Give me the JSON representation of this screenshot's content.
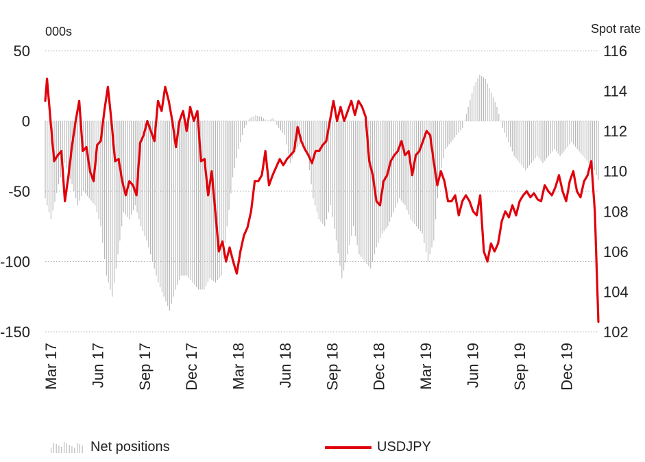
{
  "chart_data": {
    "type": "bar+line",
    "units_left": "000s",
    "units_right": "Spot rate",
    "y_left_ticks": [
      "50",
      "0",
      "-50",
      "-100",
      "-150"
    ],
    "y_right_ticks": [
      "116",
      "114",
      "112",
      "110",
      "108",
      "106",
      "104",
      "102"
    ],
    "ylim_left": [
      -150,
      50
    ],
    "ylim_right": [
      102,
      116
    ],
    "x_tick_labels": [
      "Mar 17",
      "Jun 17",
      "Sep 17",
      "Dec 17",
      "Mar 18",
      "Jun 18",
      "Sep 18",
      "Dec 18",
      "Mar 19",
      "Jun 19",
      "Sep 19",
      "Dec 19"
    ],
    "grid": "horizontal dotted",
    "legend_position": "bottom",
    "series": [
      {
        "name": "Net positions",
        "kind": "bar",
        "axis": "left",
        "color": "#b5b5b5",
        "anchors": [
          [
            0,
            -55
          ],
          [
            3,
            -70
          ],
          [
            7,
            -45
          ],
          [
            10,
            -30
          ],
          [
            14,
            -45
          ],
          [
            17,
            -60
          ],
          [
            20,
            -50
          ],
          [
            23,
            -55
          ],
          [
            26,
            -60
          ],
          [
            29,
            -75
          ],
          [
            32,
            -110
          ],
          [
            35,
            -125
          ],
          [
            38,
            -95
          ],
          [
            41,
            -65
          ],
          [
            44,
            -70
          ],
          [
            47,
            -60
          ],
          [
            50,
            -75
          ],
          [
            53,
            -85
          ],
          [
            56,
            -100
          ],
          [
            59,
            -115
          ],
          [
            62,
            -125
          ],
          [
            65,
            -135
          ],
          [
            68,
            -120
          ],
          [
            71,
            -110
          ],
          [
            74,
            -110
          ],
          [
            77,
            -115
          ],
          [
            80,
            -120
          ],
          [
            83,
            -120
          ],
          [
            86,
            -112
          ],
          [
            89,
            -115
          ],
          [
            92,
            -110
          ],
          [
            95,
            -75
          ],
          [
            98,
            -40
          ],
          [
            101,
            -20
          ],
          [
            104,
            -5
          ],
          [
            107,
            2
          ],
          [
            110,
            4
          ],
          [
            113,
            3
          ],
          [
            116,
            0
          ],
          [
            119,
            2
          ],
          [
            122,
            -5
          ],
          [
            125,
            -10
          ],
          [
            128,
            -30
          ],
          [
            131,
            -20
          ],
          [
            134,
            -15
          ],
          [
            137,
            -25
          ],
          [
            140,
            -55
          ],
          [
            143,
            -70
          ],
          [
            146,
            -75
          ],
          [
            149,
            -60
          ],
          [
            152,
            -85
          ],
          [
            155,
            -112
          ],
          [
            158,
            -95
          ],
          [
            161,
            -75
          ],
          [
            164,
            -95
          ],
          [
            167,
            -100
          ],
          [
            170,
            -105
          ],
          [
            173,
            -90
          ],
          [
            176,
            -80
          ],
          [
            179,
            -75
          ],
          [
            182,
            -65
          ],
          [
            185,
            -55
          ],
          [
            188,
            -60
          ],
          [
            191,
            -70
          ],
          [
            194,
            -75
          ],
          [
            197,
            -80
          ],
          [
            200,
            -100
          ],
          [
            203,
            -85
          ],
          [
            206,
            -40
          ],
          [
            209,
            -20
          ],
          [
            212,
            -15
          ],
          [
            215,
            -10
          ],
          [
            218,
            -5
          ],
          [
            221,
            10
          ],
          [
            224,
            25
          ],
          [
            227,
            33
          ],
          [
            230,
            30
          ],
          [
            233,
            20
          ],
          [
            236,
            10
          ],
          [
            239,
            -5
          ],
          [
            242,
            -15
          ],
          [
            245,
            -25
          ],
          [
            248,
            -30
          ],
          [
            251,
            -35
          ],
          [
            254,
            -30
          ],
          [
            257,
            -25
          ],
          [
            260,
            -30
          ],
          [
            263,
            -25
          ],
          [
            266,
            -20
          ],
          [
            269,
            -25
          ],
          [
            272,
            -20
          ],
          [
            275,
            -15
          ],
          [
            278,
            -20
          ],
          [
            281,
            -25
          ],
          [
            284,
            -30
          ],
          [
            287,
            -35
          ],
          [
            289,
            -42
          ]
        ]
      },
      {
        "name": "USDJPY",
        "kind": "line",
        "axis": "right",
        "color": "#e0000b",
        "anchors": [
          [
            0,
            113.5
          ],
          [
            1,
            114.6
          ],
          [
            3,
            112.5
          ],
          [
            5,
            110.5
          ],
          [
            7,
            110.8
          ],
          [
            9,
            111.0
          ],
          [
            11,
            108.5
          ],
          [
            13,
            109.8
          ],
          [
            15,
            111.3
          ],
          [
            17,
            112.5
          ],
          [
            19,
            113.5
          ],
          [
            21,
            111.0
          ],
          [
            23,
            111.2
          ],
          [
            25,
            110.0
          ],
          [
            27,
            109.5
          ],
          [
            29,
            111.3
          ],
          [
            31,
            111.5
          ],
          [
            33,
            113.0
          ],
          [
            35,
            114.2
          ],
          [
            37,
            112.5
          ],
          [
            39,
            110.5
          ],
          [
            41,
            110.6
          ],
          [
            43,
            109.5
          ],
          [
            45,
            108.8
          ],
          [
            47,
            109.5
          ],
          [
            49,
            109.3
          ],
          [
            51,
            108.8
          ],
          [
            53,
            111.4
          ],
          [
            55,
            111.8
          ],
          [
            57,
            112.5
          ],
          [
            59,
            112.0
          ],
          [
            61,
            111.5
          ],
          [
            63,
            113.5
          ],
          [
            65,
            113.0
          ],
          [
            67,
            114.2
          ],
          [
            69,
            113.5
          ],
          [
            71,
            112.5
          ],
          [
            73,
            111.2
          ],
          [
            75,
            112.5
          ],
          [
            77,
            113.0
          ],
          [
            79,
            112.0
          ],
          [
            81,
            113.2
          ],
          [
            83,
            112.5
          ],
          [
            85,
            113.0
          ],
          [
            87,
            110.5
          ],
          [
            89,
            110.6
          ],
          [
            91,
            108.8
          ],
          [
            93,
            110.0
          ],
          [
            95,
            108.0
          ],
          [
            97,
            106.0
          ],
          [
            99,
            106.5
          ],
          [
            101,
            105.5
          ],
          [
            103,
            106.2
          ],
          [
            105,
            105.5
          ],
          [
            107,
            104.9
          ],
          [
            109,
            106.0
          ],
          [
            111,
            106.8
          ],
          [
            113,
            107.2
          ],
          [
            115,
            108.0
          ],
          [
            117,
            109.5
          ],
          [
            119,
            109.5
          ],
          [
            121,
            109.8
          ],
          [
            123,
            111.0
          ],
          [
            125,
            109.3
          ],
          [
            127,
            109.8
          ],
          [
            129,
            110.2
          ],
          [
            131,
            110.6
          ],
          [
            133,
            110.3
          ],
          [
            135,
            110.6
          ],
          [
            137,
            110.8
          ],
          [
            139,
            111.0
          ],
          [
            141,
            112.2
          ],
          [
            143,
            111.5
          ],
          [
            145,
            111.1
          ],
          [
            147,
            110.8
          ],
          [
            149,
            110.4
          ],
          [
            151,
            111.0
          ],
          [
            153,
            111.0
          ],
          [
            155,
            111.3
          ],
          [
            157,
            111.5
          ],
          [
            159,
            112.5
          ],
          [
            161,
            113.5
          ],
          [
            163,
            112.5
          ],
          [
            165,
            113.2
          ],
          [
            167,
            112.5
          ],
          [
            169,
            113.0
          ],
          [
            171,
            113.5
          ],
          [
            173,
            112.8
          ],
          [
            175,
            113.5
          ],
          [
            177,
            113.2
          ],
          [
            179,
            112.7
          ],
          [
            181,
            110.5
          ],
          [
            183,
            109.8
          ],
          [
            185,
            108.5
          ],
          [
            187,
            108.3
          ],
          [
            189,
            109.5
          ],
          [
            191,
            109.8
          ],
          [
            193,
            110.5
          ],
          [
            195,
            110.8
          ],
          [
            197,
            111.0
          ],
          [
            199,
            111.5
          ],
          [
            201,
            110.8
          ],
          [
            203,
            111.0
          ],
          [
            205,
            109.8
          ],
          [
            207,
            110.8
          ],
          [
            209,
            111.0
          ],
          [
            211,
            111.5
          ],
          [
            213,
            112.0
          ],
          [
            215,
            111.8
          ],
          [
            217,
            110.5
          ],
          [
            219,
            109.3
          ],
          [
            221,
            110.0
          ],
          [
            223,
            109.5
          ],
          [
            225,
            108.5
          ],
          [
            227,
            108.5
          ],
          [
            229,
            108.8
          ],
          [
            231,
            107.8
          ],
          [
            233,
            108.5
          ],
          [
            235,
            108.8
          ],
          [
            237,
            108.5
          ],
          [
            239,
            108.0
          ],
          [
            241,
            107.8
          ],
          [
            243,
            108.8
          ],
          [
            245,
            106.0
          ],
          [
            247,
            105.5
          ],
          [
            249,
            106.4
          ],
          [
            251,
            106.0
          ],
          [
            253,
            106.4
          ],
          [
            255,
            107.5
          ],
          [
            257,
            108.0
          ],
          [
            259,
            107.7
          ],
          [
            261,
            108.3
          ],
          [
            263,
            107.8
          ],
          [
            265,
            108.5
          ],
          [
            267,
            108.8
          ],
          [
            269,
            109.0
          ],
          [
            271,
            108.7
          ],
          [
            273,
            108.9
          ],
          [
            275,
            108.6
          ],
          [
            277,
            108.5
          ],
          [
            279,
            109.3
          ],
          [
            281,
            109.0
          ],
          [
            283,
            108.8
          ],
          [
            285,
            109.2
          ],
          [
            287,
            109.8
          ],
          [
            289,
            109.0
          ],
          [
            291,
            108.5
          ],
          [
            293,
            109.5
          ],
          [
            295,
            110.0
          ],
          [
            297,
            109.0
          ],
          [
            299,
            108.7
          ],
          [
            301,
            109.5
          ],
          [
            303,
            109.8
          ],
          [
            305,
            110.5
          ],
          [
            307,
            108.0
          ],
          [
            309,
            102.5
          ]
        ]
      }
    ]
  },
  "legend": {
    "bars_label": "Net positions",
    "line_label": "USDJPY"
  }
}
